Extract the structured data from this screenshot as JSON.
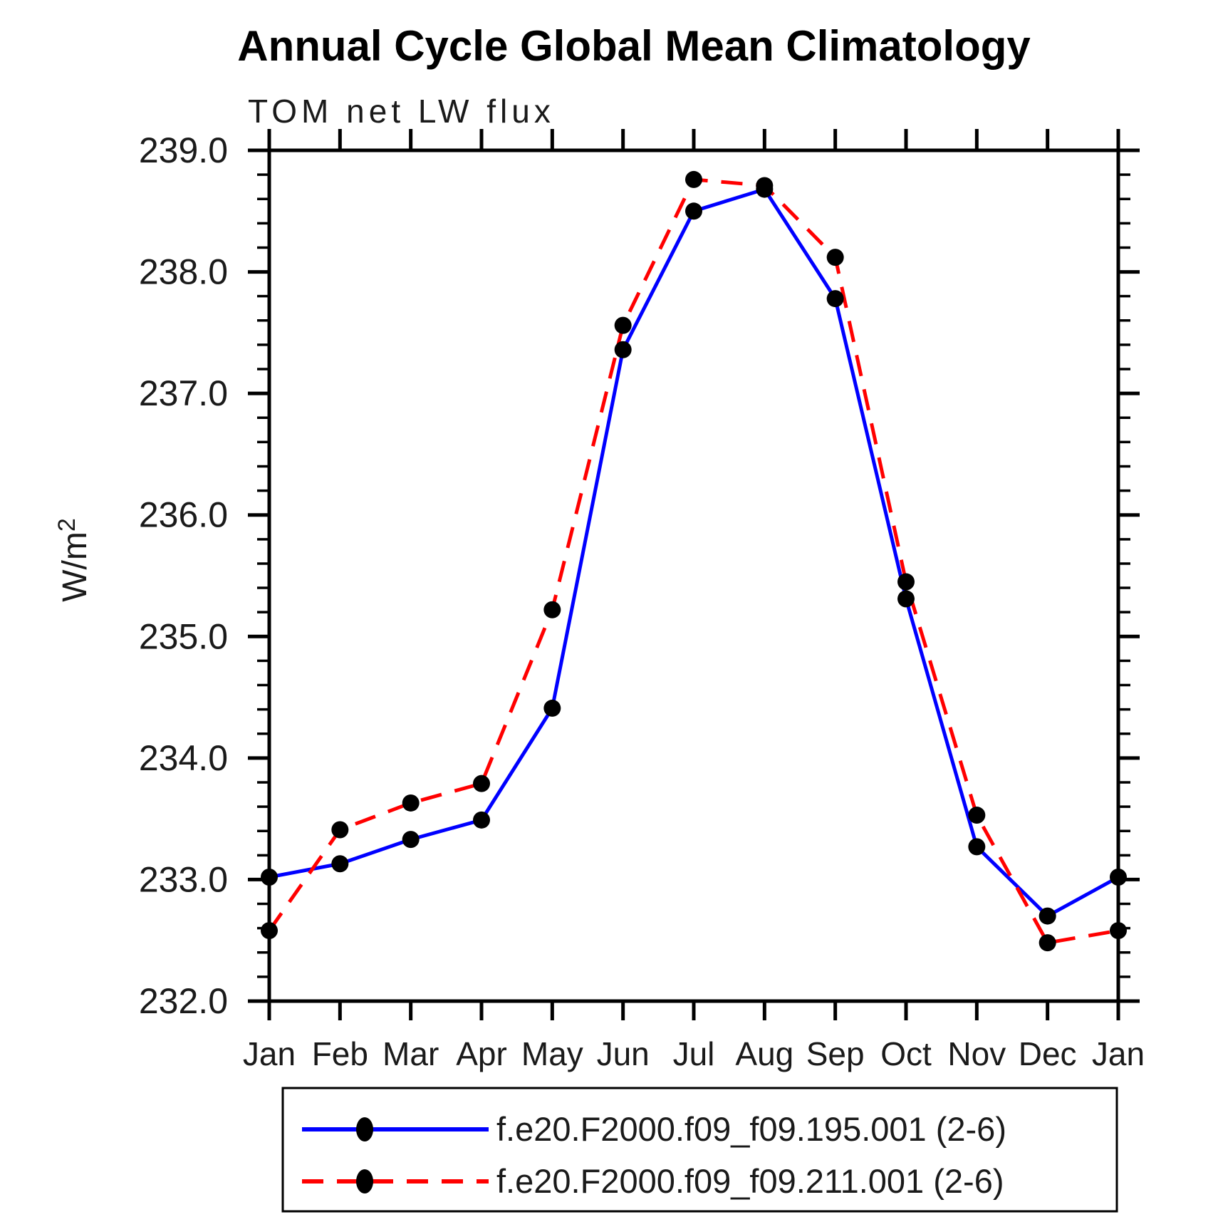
{
  "title": "Annual Cycle Global Mean Climatology",
  "subtitle": "TOM net LW flux",
  "chart_data": {
    "type": "line",
    "title": "Annual Cycle Global Mean Climatology",
    "subtitle": "TOM net LW flux",
    "ylabel": {
      "base": "W/m",
      "sup": "2"
    },
    "categories": [
      "Jan",
      "Feb",
      "Mar",
      "Apr",
      "May",
      "Jun",
      "Jul",
      "Aug",
      "Sep",
      "Oct",
      "Nov",
      "Dec",
      "Jan"
    ],
    "ylim": [
      232.0,
      239.0
    ],
    "ytick_step": 1.0,
    "ytick_minor_step": 0.2,
    "ytick_labels": [
      "232.0",
      "233.0",
      "234.0",
      "235.0",
      "236.0",
      "237.0",
      "238.0",
      "239.0"
    ],
    "grid": false,
    "legend_position": "bottom",
    "axis_color": "#000000",
    "marker_color": "#000000",
    "series": [
      {
        "name": "f.e20.F2000.f09_f09.195.001 (2-6)",
        "color": "#0000ff",
        "style": "solid",
        "marker": "circle",
        "values": [
          233.02,
          233.13,
          233.33,
          233.49,
          234.41,
          237.36,
          238.5,
          238.68,
          237.78,
          235.31,
          233.27,
          232.7,
          233.02
        ]
      },
      {
        "name": "f.e20.F2000.f09_f09.211.001 (2-6)",
        "color": "#ff0000",
        "style": "dashed",
        "marker": "circle",
        "values": [
          232.58,
          233.41,
          233.63,
          233.79,
          235.22,
          237.56,
          238.76,
          238.71,
          238.12,
          235.45,
          233.53,
          232.48,
          232.58
        ]
      }
    ]
  }
}
